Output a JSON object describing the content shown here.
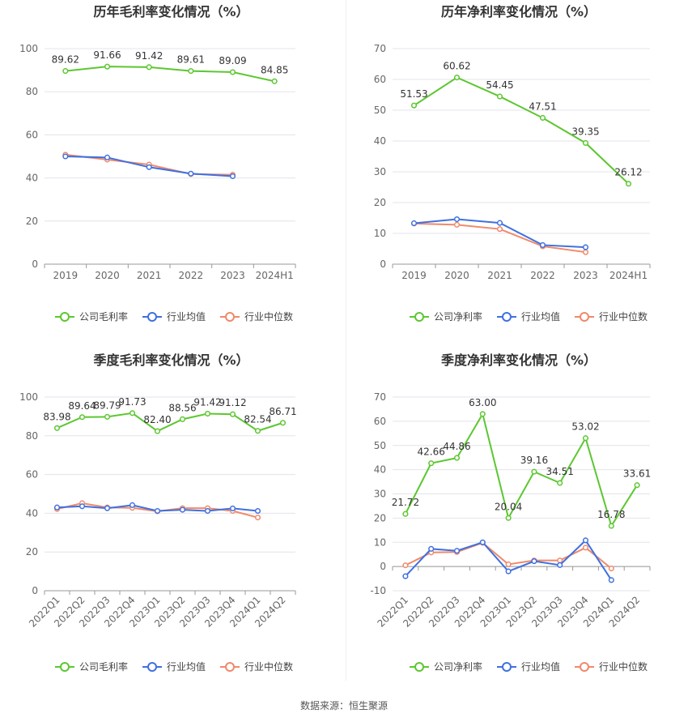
{
  "source_label": "数据来源：恒生聚源",
  "colors": {
    "company": "#5cc730",
    "industry_avg": "#3f70e0",
    "industry_median": "#f0896a",
    "grid": "#e3e3ec",
    "axis": "#999999"
  },
  "chart_data": [
    {
      "type": "line",
      "title": "历年毛利率变化情况（%）",
      "categories": [
        "2019",
        "2020",
        "2021",
        "2022",
        "2023",
        "2024H1"
      ],
      "ylim": [
        0,
        100
      ],
      "yticks": [
        0,
        20,
        40,
        60,
        80,
        100
      ],
      "grid": true,
      "legend_position": "bottom",
      "series": [
        {
          "name": "公司毛利率",
          "color": "#5cc730",
          "labels": true,
          "values": [
            89.62,
            91.66,
            91.42,
            89.61,
            89.09,
            84.85
          ]
        },
        {
          "name": "行业均值",
          "color": "#3f70e0",
          "labels": false,
          "values": [
            50.0,
            49.5,
            45.0,
            42.0,
            40.8,
            null
          ]
        },
        {
          "name": "行业中位数",
          "color": "#f0896a",
          "labels": false,
          "values": [
            50.8,
            48.5,
            46.2,
            41.8,
            41.5,
            null
          ]
        }
      ]
    },
    {
      "type": "line",
      "title": "历年净利率变化情况（%）",
      "categories": [
        "2019",
        "2020",
        "2021",
        "2022",
        "2023",
        "2024H1"
      ],
      "ylim": [
        0,
        70
      ],
      "yticks": [
        0,
        10,
        20,
        30,
        40,
        50,
        60,
        70
      ],
      "grid": true,
      "legend_position": "bottom",
      "series": [
        {
          "name": "公司净利率",
          "color": "#5cc730",
          "labels": true,
          "values": [
            51.53,
            60.62,
            54.45,
            47.51,
            39.35,
            26.12
          ]
        },
        {
          "name": "行业均值",
          "color": "#3f70e0",
          "labels": false,
          "values": [
            13.3,
            14.6,
            13.4,
            6.2,
            5.5,
            null
          ]
        },
        {
          "name": "行业中位数",
          "color": "#f0896a",
          "labels": false,
          "values": [
            13.2,
            12.8,
            11.4,
            5.8,
            3.9,
            null
          ]
        }
      ]
    },
    {
      "type": "line",
      "title": "季度毛利率变化情况（%）",
      "categories": [
        "2022Q1",
        "2022Q2",
        "2022Q3",
        "2022Q4",
        "2023Q1",
        "2023Q2",
        "2023Q3",
        "2023Q4",
        "2024Q1",
        "2024Q2"
      ],
      "ylim": [
        0,
        100
      ],
      "yticks": [
        0,
        20,
        40,
        60,
        80,
        100
      ],
      "grid": true,
      "legend_position": "bottom",
      "series": [
        {
          "name": "公司毛利率",
          "color": "#5cc730",
          "labels": true,
          "values": [
            83.98,
            89.64,
            89.79,
            91.73,
            82.4,
            88.56,
            91.42,
            91.12,
            82.54,
            86.71
          ]
        },
        {
          "name": "行业均值",
          "color": "#3f70e0",
          "labels": false,
          "values": [
            43.0,
            43.6,
            42.6,
            44.2,
            41.2,
            41.8,
            41.2,
            42.5,
            41.2,
            null
          ]
        },
        {
          "name": "行业中位数",
          "color": "#f0896a",
          "labels": false,
          "values": [
            42.2,
            45.2,
            43.0,
            42.8,
            41.0,
            42.6,
            42.6,
            41.2,
            37.8,
            null
          ]
        }
      ]
    },
    {
      "type": "line",
      "title": "季度净利率变化情况（%）",
      "categories": [
        "2022Q1",
        "2022Q2",
        "2022Q3",
        "2022Q4",
        "2023Q1",
        "2023Q2",
        "2023Q3",
        "2023Q4",
        "2024Q1",
        "2024Q2"
      ],
      "ylim": [
        -10,
        70
      ],
      "yticks": [
        -10,
        0,
        10,
        20,
        30,
        40,
        50,
        60,
        70
      ],
      "grid": true,
      "legend_position": "bottom",
      "series": [
        {
          "name": "公司净利率",
          "color": "#5cc730",
          "labels": true,
          "values": [
            21.72,
            42.66,
            44.86,
            63.0,
            20.04,
            39.16,
            34.51,
            53.02,
            16.78,
            33.61
          ]
        },
        {
          "name": "行业均值",
          "color": "#3f70e0",
          "labels": false,
          "values": [
            -4.0,
            7.3,
            6.5,
            10.0,
            -2.0,
            2.2,
            0.6,
            10.8,
            -5.6,
            null
          ]
        },
        {
          "name": "行业中位数",
          "color": "#f0896a",
          "labels": false,
          "values": [
            0.5,
            5.8,
            6.0,
            9.8,
            0.9,
            2.5,
            2.5,
            7.8,
            -0.8,
            null
          ]
        }
      ]
    }
  ]
}
